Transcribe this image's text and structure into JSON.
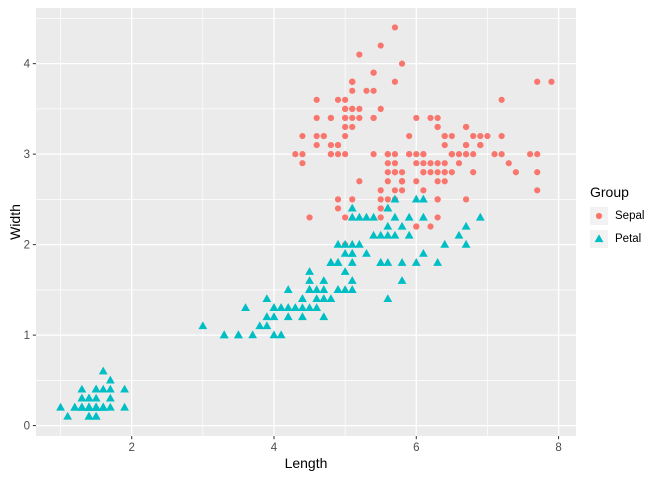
{
  "chart_data": {
    "type": "scatter",
    "title": "",
    "xlabel": "Length",
    "ylabel": "Width",
    "xlim": [
      0.655,
      8.245
    ],
    "ylim": [
      -0.115,
      4.615
    ],
    "xticks": {
      "major": [
        2,
        4,
        6,
        8
      ],
      "labels": [
        "2",
        "4",
        "6",
        "8"
      ],
      "minor": [
        1,
        3,
        5,
        7
      ]
    },
    "yticks": {
      "major": [
        0,
        1,
        2,
        3,
        4
      ],
      "labels": [
        "0",
        "1",
        "2",
        "3",
        "4"
      ],
      "minor": [
        0.5,
        1.5,
        2.5,
        3.5,
        4.5
      ]
    },
    "grid": "major-and-minor-white",
    "panel_bg": "#EBEBEB",
    "grid_color": "#FFFFFF",
    "tick_color": "#333333",
    "tick_label_color": "#4D4D4D",
    "legend": {
      "title": "Group",
      "position": "right",
      "key_bg": "#F2F2F2"
    },
    "series": [
      {
        "name": "Sepal",
        "shape": "circle",
        "color": "#F8766D",
        "points": [
          [
            5.1,
            3.5
          ],
          [
            4.9,
            3.0
          ],
          [
            4.7,
            3.2
          ],
          [
            4.6,
            3.1
          ],
          [
            5.0,
            3.6
          ],
          [
            5.4,
            3.9
          ],
          [
            4.6,
            3.4
          ],
          [
            5.0,
            3.4
          ],
          [
            4.4,
            2.9
          ],
          [
            4.9,
            3.1
          ],
          [
            5.4,
            3.7
          ],
          [
            4.8,
            3.4
          ],
          [
            4.8,
            3.0
          ],
          [
            4.3,
            3.0
          ],
          [
            5.8,
            4.0
          ],
          [
            5.7,
            4.4
          ],
          [
            5.4,
            3.9
          ],
          [
            5.1,
            3.5
          ],
          [
            5.7,
            3.8
          ],
          [
            5.1,
            3.8
          ],
          [
            5.4,
            3.4
          ],
          [
            5.1,
            3.7
          ],
          [
            4.6,
            3.6
          ],
          [
            5.1,
            3.3
          ],
          [
            4.8,
            3.4
          ],
          [
            5.0,
            3.0
          ],
          [
            5.0,
            3.4
          ],
          [
            5.2,
            3.5
          ],
          [
            5.2,
            3.4
          ],
          [
            4.7,
            3.2
          ],
          [
            4.8,
            3.1
          ],
          [
            5.4,
            3.4
          ],
          [
            5.2,
            4.1
          ],
          [
            5.5,
            4.2
          ],
          [
            4.9,
            3.1
          ],
          [
            5.0,
            3.2
          ],
          [
            5.5,
            3.5
          ],
          [
            4.9,
            3.6
          ],
          [
            4.4,
            3.0
          ],
          [
            5.1,
            3.4
          ],
          [
            5.0,
            3.5
          ],
          [
            4.5,
            2.3
          ],
          [
            4.4,
            3.2
          ],
          [
            5.0,
            3.5
          ],
          [
            5.1,
            3.8
          ],
          [
            4.8,
            3.0
          ],
          [
            5.1,
            3.8
          ],
          [
            4.6,
            3.2
          ],
          [
            5.3,
            3.7
          ],
          [
            5.0,
            3.3
          ],
          [
            7.0,
            3.2
          ],
          [
            6.4,
            3.2
          ],
          [
            6.9,
            3.1
          ],
          [
            5.5,
            2.3
          ],
          [
            6.5,
            2.8
          ],
          [
            5.7,
            2.8
          ],
          [
            6.3,
            3.3
          ],
          [
            4.9,
            2.4
          ],
          [
            6.6,
            2.9
          ],
          [
            5.2,
            2.7
          ],
          [
            5.0,
            2.0
          ],
          [
            5.9,
            3.0
          ],
          [
            6.0,
            2.2
          ],
          [
            6.1,
            2.9
          ],
          [
            5.6,
            2.9
          ],
          [
            6.7,
            3.1
          ],
          [
            5.6,
            3.0
          ],
          [
            5.8,
            2.7
          ],
          [
            6.2,
            2.2
          ],
          [
            5.6,
            2.5
          ],
          [
            5.9,
            3.2
          ],
          [
            6.1,
            2.8
          ],
          [
            6.3,
            2.5
          ],
          [
            6.1,
            2.8
          ],
          [
            6.4,
            2.9
          ],
          [
            6.6,
            3.0
          ],
          [
            6.8,
            2.8
          ],
          [
            6.7,
            3.0
          ],
          [
            6.0,
            2.9
          ],
          [
            5.7,
            2.6
          ],
          [
            5.5,
            2.4
          ],
          [
            5.5,
            2.4
          ],
          [
            5.8,
            2.7
          ],
          [
            6.0,
            2.7
          ],
          [
            5.4,
            3.0
          ],
          [
            6.0,
            3.4
          ],
          [
            6.7,
            3.1
          ],
          [
            6.3,
            2.3
          ],
          [
            5.6,
            3.0
          ],
          [
            5.5,
            2.5
          ],
          [
            5.5,
            2.6
          ],
          [
            6.1,
            3.0
          ],
          [
            5.8,
            2.6
          ],
          [
            5.0,
            2.3
          ],
          [
            5.6,
            2.7
          ],
          [
            5.7,
            3.0
          ],
          [
            5.7,
            2.9
          ],
          [
            6.2,
            2.9
          ],
          [
            5.1,
            2.5
          ],
          [
            5.7,
            2.8
          ],
          [
            6.3,
            3.3
          ],
          [
            5.8,
            2.7
          ],
          [
            7.1,
            3.0
          ],
          [
            6.3,
            2.9
          ],
          [
            6.5,
            3.0
          ],
          [
            7.6,
            3.0
          ],
          [
            4.9,
            2.5
          ],
          [
            7.3,
            2.9
          ],
          [
            6.7,
            2.5
          ],
          [
            7.2,
            3.6
          ],
          [
            6.5,
            3.2
          ],
          [
            6.4,
            2.7
          ],
          [
            6.8,
            3.0
          ],
          [
            5.7,
            2.5
          ],
          [
            5.8,
            2.8
          ],
          [
            6.4,
            3.2
          ],
          [
            6.5,
            3.0
          ],
          [
            7.7,
            3.8
          ],
          [
            7.7,
            2.6
          ],
          [
            6.0,
            2.2
          ],
          [
            6.9,
            3.2
          ],
          [
            5.6,
            2.8
          ],
          [
            7.7,
            2.8
          ],
          [
            6.3,
            2.7
          ],
          [
            6.7,
            3.3
          ],
          [
            7.2,
            3.2
          ],
          [
            6.2,
            2.8
          ],
          [
            6.1,
            3.0
          ],
          [
            6.4,
            2.8
          ],
          [
            7.2,
            3.0
          ],
          [
            7.4,
            2.8
          ],
          [
            7.9,
            3.8
          ],
          [
            6.4,
            2.8
          ],
          [
            6.3,
            2.8
          ],
          [
            6.1,
            2.6
          ],
          [
            7.7,
            3.0
          ],
          [
            6.3,
            3.4
          ],
          [
            6.4,
            3.1
          ],
          [
            6.0,
            3.0
          ],
          [
            6.9,
            3.1
          ],
          [
            6.7,
            3.1
          ],
          [
            6.9,
            3.1
          ],
          [
            5.8,
            2.7
          ],
          [
            6.8,
            3.2
          ],
          [
            6.7,
            3.3
          ],
          [
            6.7,
            3.0
          ],
          [
            6.3,
            2.5
          ],
          [
            6.5,
            3.0
          ],
          [
            6.2,
            3.4
          ],
          [
            5.9,
            3.0
          ]
        ]
      },
      {
        "name": "Petal",
        "shape": "triangle",
        "color": "#00BFC4",
        "points": [
          [
            1.4,
            0.2
          ],
          [
            1.4,
            0.2
          ],
          [
            1.3,
            0.2
          ],
          [
            1.5,
            0.2
          ],
          [
            1.4,
            0.2
          ],
          [
            1.7,
            0.4
          ],
          [
            1.4,
            0.3
          ],
          [
            1.5,
            0.2
          ],
          [
            1.4,
            0.2
          ],
          [
            1.5,
            0.1
          ],
          [
            1.5,
            0.2
          ],
          [
            1.6,
            0.2
          ],
          [
            1.4,
            0.1
          ],
          [
            1.1,
            0.1
          ],
          [
            1.2,
            0.2
          ],
          [
            1.5,
            0.4
          ],
          [
            1.3,
            0.4
          ],
          [
            1.4,
            0.3
          ],
          [
            1.7,
            0.3
          ],
          [
            1.5,
            0.3
          ],
          [
            1.7,
            0.2
          ],
          [
            1.5,
            0.4
          ],
          [
            1.0,
            0.2
          ],
          [
            1.7,
            0.5
          ],
          [
            1.9,
            0.2
          ],
          [
            1.6,
            0.2
          ],
          [
            1.6,
            0.4
          ],
          [
            1.5,
            0.2
          ],
          [
            1.4,
            0.2
          ],
          [
            1.6,
            0.2
          ],
          [
            1.6,
            0.2
          ],
          [
            1.5,
            0.4
          ],
          [
            1.5,
            0.1
          ],
          [
            1.4,
            0.2
          ],
          [
            1.5,
            0.2
          ],
          [
            1.2,
            0.2
          ],
          [
            1.3,
            0.2
          ],
          [
            1.4,
            0.1
          ],
          [
            1.3,
            0.2
          ],
          [
            1.5,
            0.2
          ],
          [
            1.3,
            0.3
          ],
          [
            1.3,
            0.3
          ],
          [
            1.3,
            0.2
          ],
          [
            1.6,
            0.6
          ],
          [
            1.9,
            0.4
          ],
          [
            1.4,
            0.3
          ],
          [
            1.6,
            0.2
          ],
          [
            1.4,
            0.2
          ],
          [
            1.5,
            0.2
          ],
          [
            1.4,
            0.2
          ],
          [
            4.7,
            1.4
          ],
          [
            4.5,
            1.5
          ],
          [
            4.9,
            1.5
          ],
          [
            4.0,
            1.3
          ],
          [
            4.6,
            1.5
          ],
          [
            4.5,
            1.3
          ],
          [
            4.7,
            1.6
          ],
          [
            3.3,
            1.0
          ],
          [
            4.6,
            1.3
          ],
          [
            3.9,
            1.4
          ],
          [
            3.5,
            1.0
          ],
          [
            4.2,
            1.5
          ],
          [
            4.0,
            1.0
          ],
          [
            4.7,
            1.4
          ],
          [
            3.6,
            1.3
          ],
          [
            4.4,
            1.4
          ],
          [
            4.5,
            1.5
          ],
          [
            4.1,
            1.0
          ],
          [
            4.5,
            1.5
          ],
          [
            3.9,
            1.1
          ],
          [
            4.8,
            1.8
          ],
          [
            4.0,
            1.3
          ],
          [
            4.9,
            1.5
          ],
          [
            4.7,
            1.2
          ],
          [
            4.3,
            1.3
          ],
          [
            4.4,
            1.4
          ],
          [
            4.8,
            1.4
          ],
          [
            5.0,
            1.7
          ],
          [
            4.5,
            1.5
          ],
          [
            3.5,
            1.0
          ],
          [
            3.8,
            1.1
          ],
          [
            3.7,
            1.0
          ],
          [
            3.9,
            1.2
          ],
          [
            5.1,
            1.6
          ],
          [
            4.5,
            1.5
          ],
          [
            4.5,
            1.6
          ],
          [
            4.7,
            1.5
          ],
          [
            4.4,
            1.3
          ],
          [
            4.1,
            1.3
          ],
          [
            4.0,
            1.3
          ],
          [
            4.4,
            1.2
          ],
          [
            4.6,
            1.4
          ],
          [
            4.0,
            1.2
          ],
          [
            3.3,
            1.0
          ],
          [
            4.2,
            1.3
          ],
          [
            4.2,
            1.2
          ],
          [
            4.2,
            1.3
          ],
          [
            4.3,
            1.3
          ],
          [
            3.0,
            1.1
          ],
          [
            4.1,
            1.3
          ],
          [
            6.0,
            2.5
          ],
          [
            5.1,
            1.9
          ],
          [
            5.9,
            2.1
          ],
          [
            5.6,
            1.8
          ],
          [
            5.8,
            2.2
          ],
          [
            6.6,
            2.1
          ],
          [
            4.5,
            1.7
          ],
          [
            6.3,
            1.8
          ],
          [
            5.8,
            1.8
          ],
          [
            6.1,
            2.5
          ],
          [
            5.1,
            2.0
          ],
          [
            5.3,
            1.9
          ],
          [
            5.5,
            2.1
          ],
          [
            5.0,
            2.0
          ],
          [
            5.1,
            2.4
          ],
          [
            5.3,
            2.3
          ],
          [
            5.5,
            1.8
          ],
          [
            6.7,
            2.2
          ],
          [
            6.9,
            2.3
          ],
          [
            5.0,
            1.5
          ],
          [
            5.7,
            2.3
          ],
          [
            4.9,
            2.0
          ],
          [
            6.7,
            2.0
          ],
          [
            4.9,
            1.8
          ],
          [
            5.7,
            2.1
          ],
          [
            6.0,
            1.8
          ],
          [
            4.8,
            1.8
          ],
          [
            4.9,
            1.8
          ],
          [
            5.6,
            2.1
          ],
          [
            5.8,
            1.6
          ],
          [
            6.1,
            1.9
          ],
          [
            6.4,
            2.0
          ],
          [
            5.6,
            2.2
          ],
          [
            5.1,
            1.5
          ],
          [
            5.6,
            1.4
          ],
          [
            6.1,
            2.3
          ],
          [
            5.6,
            2.4
          ],
          [
            5.5,
            1.8
          ],
          [
            4.8,
            1.8
          ],
          [
            5.4,
            2.1
          ],
          [
            5.6,
            2.4
          ],
          [
            5.1,
            2.3
          ],
          [
            5.1,
            1.9
          ],
          [
            5.9,
            2.3
          ],
          [
            5.7,
            2.5
          ],
          [
            5.2,
            2.3
          ],
          [
            5.0,
            1.9
          ],
          [
            5.2,
            2.0
          ],
          [
            5.4,
            2.3
          ],
          [
            5.1,
            1.8
          ]
        ]
      }
    ]
  }
}
